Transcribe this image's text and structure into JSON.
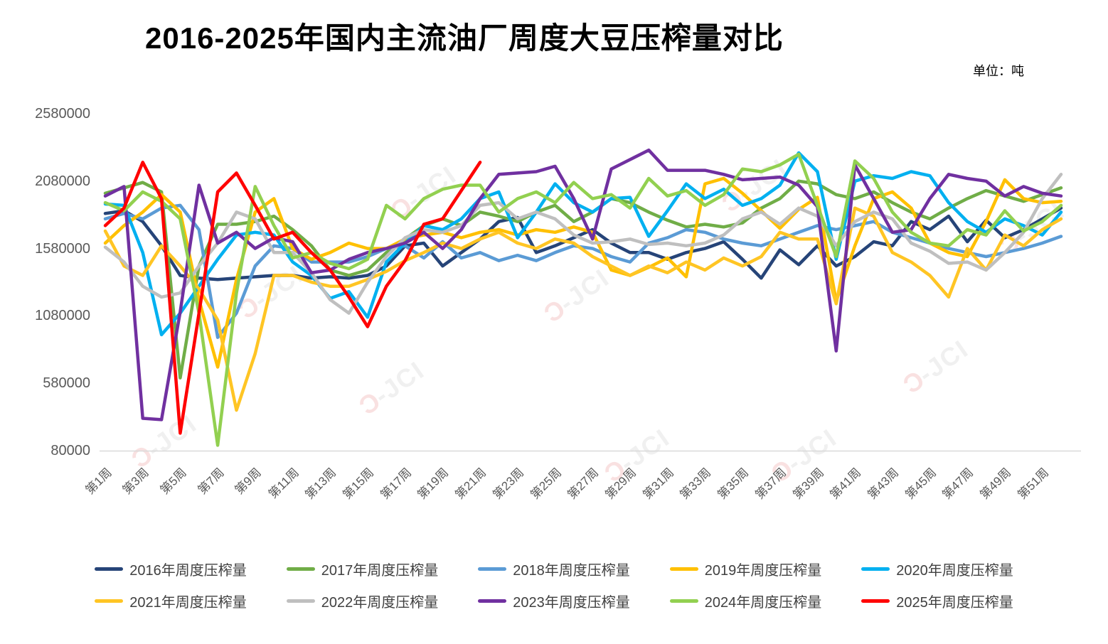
{
  "title": "2016-2025年国内主流油厂周度大豆压榨量对比",
  "unit_label": "单位：吨",
  "watermark": {
    "symbol": "Ɔ",
    "label": "-JCI"
  },
  "chart_data": {
    "type": "line",
    "title": "2016-2025年国内主流油厂周度大豆压榨量对比",
    "unit": "吨",
    "grid": false,
    "legend_position": "bottom",
    "ylim": [
      80000,
      2580000
    ],
    "y_ticks": [
      2580000,
      2080000,
      1580000,
      1080000,
      580000,
      80000
    ],
    "x_labels": [
      "第1周",
      "第3周",
      "第5周",
      "第7周",
      "第9周",
      "第11周",
      "第13周",
      "第15周",
      "第17周",
      "第19周",
      "第21周",
      "第23周",
      "第25周",
      "第27周",
      "第29周",
      "第31周",
      "第33周",
      "第35周",
      "第37周",
      "第39周",
      "第41周",
      "第43周",
      "第45周",
      "第47周",
      "第49周",
      "第51周"
    ],
    "weeks": 52,
    "series": [
      {
        "name": "2016年周度压榨量",
        "color": "#264478",
        "values": [
          1840000,
          1860000,
          1780000,
          1600000,
          1380000,
          1360000,
          1350000,
          1360000,
          1370000,
          1380000,
          1380000,
          1360000,
          1370000,
          1360000,
          1380000,
          1450000,
          1600000,
          1620000,
          1450000,
          1550000,
          1650000,
          1780000,
          1810000,
          1550000,
          1600000,
          1660000,
          1720000,
          1620000,
          1550000,
          1550000,
          1500000,
          1550000,
          1580000,
          1630000,
          1500000,
          1360000,
          1570000,
          1460000,
          1600000,
          1450000,
          1520000,
          1630000,
          1600000,
          1780000,
          1720000,
          1820000,
          1630000,
          1790000,
          1660000,
          1720000,
          1800000,
          1880000
        ]
      },
      {
        "name": "2017年周度压榨量",
        "color": "#70AD47",
        "values": [
          1990000,
          2030000,
          2070000,
          2000000,
          620000,
          1450000,
          1760000,
          1760000,
          1780000,
          1820000,
          1720000,
          1600000,
          1420000,
          1380000,
          1420000,
          1550000,
          1650000,
          1750000,
          1800000,
          1750000,
          1850000,
          1820000,
          1780000,
          1850000,
          1900000,
          1780000,
          1850000,
          1950000,
          1920000,
          1850000,
          1790000,
          1740000,
          1760000,
          1740000,
          1770000,
          1880000,
          1950000,
          2080000,
          2060000,
          1980000,
          1950000,
          2000000,
          1920000,
          1850000,
          1800000,
          1880000,
          1950000,
          2010000,
          1970000,
          1930000,
          1980000,
          2030000
        ]
      },
      {
        "name": "2018年周度压榨量",
        "color": "#5B9BD5",
        "values": [
          1800000,
          1840000,
          1800000,
          1880000,
          1900000,
          1720000,
          920000,
          1100000,
          1450000,
          1600000,
          1580000,
          1480000,
          1480000,
          1480000,
          1520000,
          1580000,
          1600000,
          1510000,
          1630000,
          1510000,
          1550000,
          1490000,
          1530000,
          1490000,
          1550000,
          1600000,
          1580000,
          1520000,
          1480000,
          1620000,
          1660000,
          1720000,
          1700000,
          1650000,
          1620000,
          1600000,
          1650000,
          1700000,
          1750000,
          1720000,
          1750000,
          1780000,
          1700000,
          1660000,
          1620000,
          1580000,
          1550000,
          1520000,
          1550000,
          1580000,
          1620000,
          1670000
        ]
      },
      {
        "name": "2019年周度压榨量",
        "color": "#FFC000",
        "values": [
          1620000,
          1750000,
          1850000,
          1980000,
          1850000,
          1200000,
          700000,
          1350000,
          1850000,
          1950000,
          1580000,
          1500000,
          1550000,
          1620000,
          1580000,
          1580000,
          1650000,
          1680000,
          1700000,
          1660000,
          1700000,
          1720000,
          1680000,
          1720000,
          1700000,
          1740000,
          1700000,
          1420000,
          1380000,
          1440000,
          1510000,
          1370000,
          2060000,
          2100000,
          1990000,
          1860000,
          1730000,
          1870000,
          1960000,
          1190000,
          1600000,
          1950000,
          2000000,
          1880000,
          1620000,
          1550000,
          1520000,
          1780000,
          2090000,
          1950000,
          1920000,
          1930000
        ]
      },
      {
        "name": "2020年周度压榨量",
        "color": "#00B0F0",
        "values": [
          1910000,
          1900000,
          1550000,
          940000,
          1100000,
          1300000,
          1500000,
          1680000,
          1700000,
          1680000,
          1480000,
          1380000,
          1210000,
          1260000,
          1070000,
          1480000,
          1620000,
          1750000,
          1720000,
          1800000,
          1950000,
          2000000,
          1660000,
          1850000,
          2060000,
          1920000,
          1850000,
          1950000,
          1960000,
          1670000,
          1860000,
          2060000,
          1950000,
          2020000,
          1900000,
          1950000,
          2050000,
          2290000,
          2150000,
          1500000,
          2080000,
          2120000,
          2100000,
          2150000,
          2120000,
          1920000,
          1780000,
          1700000,
          1800000,
          1750000,
          1680000,
          1850000
        ]
      },
      {
        "name": "2021年周度压榨量",
        "color": "#FFC524",
        "values": [
          1710000,
          1450000,
          1380000,
          1600000,
          1450000,
          1280000,
          1050000,
          380000,
          800000,
          1380000,
          1380000,
          1330000,
          1300000,
          1300000,
          1350000,
          1410000,
          1490000,
          1550000,
          1620000,
          1580000,
          1650000,
          1700000,
          1620000,
          1580000,
          1650000,
          1620000,
          1520000,
          1450000,
          1380000,
          1450000,
          1400000,
          1480000,
          1420000,
          1510000,
          1450000,
          1520000,
          1700000,
          1650000,
          1650000,
          1170000,
          1880000,
          1820000,
          1550000,
          1480000,
          1380000,
          1220000,
          1580000,
          1420000,
          1680000,
          1600000,
          1720000,
          1800000
        ]
      },
      {
        "name": "2022年周度压榨量",
        "color": "#BFBFBF",
        "values": [
          1590000,
          1480000,
          1300000,
          1220000,
          1250000,
          1450000,
          1620000,
          1850000,
          1800000,
          1550000,
          1550000,
          1400000,
          1200000,
          1100000,
          1330000,
          1520000,
          1660000,
          1720000,
          1700000,
          1750000,
          1900000,
          1920000,
          1800000,
          1850000,
          1800000,
          1680000,
          1620000,
          1630000,
          1650000,
          1610000,
          1620000,
          1600000,
          1620000,
          1680000,
          1800000,
          1850000,
          1760000,
          1880000,
          1820000,
          1600000,
          1780000,
          1850000,
          1800000,
          1620000,
          1560000,
          1470000,
          1480000,
          1420000,
          1550000,
          1700000,
          1950000,
          2130000
        ]
      },
      {
        "name": "2023年周度压榨量",
        "color": "#7030A0",
        "values": [
          1970000,
          2040000,
          320000,
          310000,
          1110000,
          2050000,
          1620000,
          1700000,
          1580000,
          1660000,
          1630000,
          1400000,
          1420000,
          1500000,
          1550000,
          1580000,
          1620000,
          1700000,
          1580000,
          1720000,
          1950000,
          2130000,
          2140000,
          2150000,
          2190000,
          1950000,
          1650000,
          2170000,
          2240000,
          2310000,
          2160000,
          2160000,
          2160000,
          2130000,
          2090000,
          2100000,
          2110000,
          2050000,
          1890000,
          820000,
          2200000,
          1950000,
          1700000,
          1720000,
          1950000,
          2130000,
          2100000,
          2080000,
          1970000,
          2040000,
          1990000,
          1970000
        ]
      },
      {
        "name": "2024年周度压榨量",
        "color": "#92D050",
        "values": [
          1920000,
          1860000,
          2000000,
          1930000,
          1800000,
          1100000,
          120000,
          1250000,
          2040000,
          1750000,
          1510000,
          1550000,
          1470000,
          1430000,
          1500000,
          1900000,
          1800000,
          1950000,
          2020000,
          2050000,
          2050000,
          1850000,
          1950000,
          2000000,
          1920000,
          2070000,
          1950000,
          1980000,
          1880000,
          2100000,
          1970000,
          2010000,
          1900000,
          1980000,
          2170000,
          2150000,
          2200000,
          2280000,
          1900000,
          1520000,
          2230000,
          2100000,
          1850000,
          1700000,
          1620000,
          1600000,
          1720000,
          1680000,
          1860000,
          1710000,
          1780000,
          1900000
        ]
      },
      {
        "name": "2025年周度压榨量",
        "color": "#FF0000",
        "values": [
          1750000,
          1880000,
          2220000,
          1950000,
          210000,
          1100000,
          2000000,
          2140000,
          1900000,
          1650000,
          1700000,
          1550000,
          1420000,
          1220000,
          1000000,
          1300000,
          1490000,
          1760000,
          1800000,
          2010000,
          2220000
        ]
      }
    ]
  }
}
